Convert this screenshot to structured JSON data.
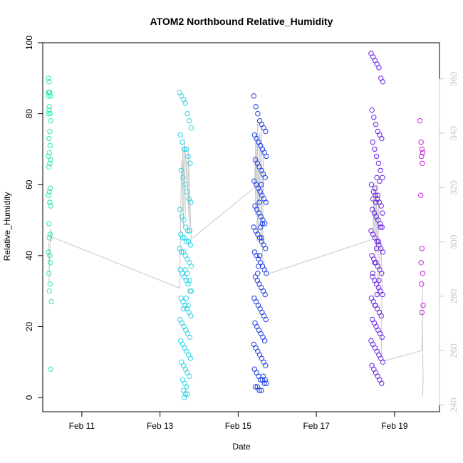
{
  "chart_data": {
    "type": "scatter",
    "title": "ATOM2 Northbound Relative_Humidity",
    "xlabel": "Date",
    "ylabel": "Relative_Humidity",
    "x_is_date": true,
    "xlim": [
      10.0,
      20.15
    ],
    "ylim": [
      -4,
      100
    ],
    "x_ticks": [
      {
        "value": 11,
        "label": "Feb 11"
      },
      {
        "value": 13,
        "label": "Feb 13"
      },
      {
        "value": 15,
        "label": "Feb 15"
      },
      {
        "value": 17,
        "label": "Feb 17"
      },
      {
        "value": 19,
        "label": "Feb 19"
      }
    ],
    "y_ticks": [
      0,
      20,
      40,
      60,
      80,
      100
    ],
    "y2_axis": {
      "label": "",
      "ylim": [
        237.5,
        373.3
      ],
      "ticks": [
        240,
        260,
        280,
        300,
        320,
        340,
        360
      ],
      "color": "#c8c8c8"
    },
    "grid": false,
    "legend": "none",
    "series": [
      {
        "color": "#2ee8b4",
        "x": [
          10.15,
          10.16,
          10.17,
          10.15,
          10.18,
          10.2,
          10.16,
          10.19,
          10.15,
          10.17,
          10.2,
          10.18,
          10.16,
          10.19,
          10.17,
          10.15,
          10.2,
          10.18,
          10.16,
          10.19,
          10.17,
          10.15,
          10.18,
          10.2,
          10.16,
          10.19,
          10.17,
          10.15,
          10.18,
          10.2,
          10.16,
          10.19,
          10.17,
          10.22,
          10.15,
          10.18,
          10.2
        ],
        "y": [
          90,
          89,
          86,
          85,
          86,
          85,
          81,
          80,
          80,
          82,
          78,
          75,
          73,
          71,
          69,
          68,
          67,
          66,
          65,
          59,
          58,
          57,
          55,
          54,
          49,
          46,
          45,
          41,
          40,
          38,
          35,
          32,
          30,
          27,
          86,
          55,
          8
        ]
      },
      {
        "color": "#2cd4e8",
        "x": [
          13.5,
          13.55,
          13.6,
          13.65,
          13.7,
          13.75,
          13.8,
          13.52,
          13.57,
          13.62,
          13.67,
          13.72,
          13.77,
          13.54,
          13.59,
          13.64,
          13.69,
          13.74,
          13.79,
          13.51,
          13.56,
          13.61,
          13.66,
          13.71,
          13.76,
          13.53,
          13.58,
          13.63,
          13.68,
          13.73,
          13.78,
          13.5,
          13.55,
          13.6,
          13.65,
          13.7,
          13.75,
          13.8,
          13.52,
          13.57,
          13.62,
          13.67,
          13.72,
          13.77,
          13.54,
          13.59,
          13.64,
          13.69,
          13.74,
          13.79,
          13.51,
          13.56,
          13.61,
          13.66,
          13.71,
          13.76,
          13.53,
          13.58,
          13.63,
          13.68,
          13.73,
          13.78,
          13.55,
          13.6,
          13.65,
          13.7,
          13.75,
          13.58,
          13.63,
          13.68,
          13.6,
          13.65,
          13.7,
          13.62,
          13.67,
          13.72,
          13.6,
          13.65,
          13.7,
          13.75,
          13.8
        ],
        "y": [
          86,
          85,
          84,
          83,
          80,
          78,
          76,
          74,
          72,
          70,
          70,
          68,
          66,
          64,
          62,
          60,
          58,
          56,
          55,
          53,
          51,
          50,
          48,
          47,
          47,
          46,
          45,
          45,
          44,
          44,
          43,
          42,
          41,
          41,
          40,
          39,
          38,
          37,
          36,
          35,
          34,
          33,
          32,
          30,
          28,
          27,
          26,
          25,
          24,
          23,
          22,
          21,
          20,
          19,
          18,
          17,
          16,
          15,
          14,
          13,
          12,
          11,
          10,
          9,
          8,
          7,
          6,
          5,
          4,
          3,
          2,
          1,
          1,
          0,
          28,
          26,
          25,
          36,
          35,
          33,
          30
        ]
      },
      {
        "color": "#1e3ee8",
        "x": [
          15.4,
          15.45,
          15.5,
          15.55,
          15.6,
          15.65,
          15.7,
          15.42,
          15.47,
          15.52,
          15.57,
          15.62,
          15.67,
          15.72,
          15.44,
          15.49,
          15.54,
          15.59,
          15.64,
          15.69,
          15.41,
          15.46,
          15.51,
          15.56,
          15.61,
          15.66,
          15.71,
          15.43,
          15.48,
          15.53,
          15.58,
          15.63,
          15.68,
          15.4,
          15.45,
          15.5,
          15.55,
          15.6,
          15.65,
          15.7,
          15.42,
          15.47,
          15.52,
          15.57,
          15.62,
          15.67,
          15.72,
          15.44,
          15.49,
          15.54,
          15.59,
          15.64,
          15.69,
          15.41,
          15.46,
          15.51,
          15.56,
          15.61,
          15.66,
          15.71,
          15.43,
          15.48,
          15.53,
          15.58,
          15.63,
          15.68,
          15.4,
          15.45,
          15.5,
          15.55,
          15.6,
          15.65,
          15.7,
          15.42,
          15.47,
          15.52,
          15.57,
          15.62,
          15.67,
          15.72,
          15.44,
          15.49,
          15.54,
          15.59,
          15.64,
          15.69,
          15.5,
          15.55,
          15.6,
          15.52,
          15.57,
          15.62,
          15.54,
          15.59
        ],
        "y": [
          85,
          82,
          80,
          78,
          77,
          76,
          75,
          74,
          73,
          72,
          71,
          70,
          69,
          68,
          67,
          66,
          65,
          64,
          63,
          62,
          61,
          60,
          59,
          58,
          57,
          56,
          55,
          54,
          53,
          52,
          51,
          50,
          49,
          48,
          47,
          46,
          45,
          44,
          43,
          42,
          41,
          40,
          39,
          38,
          37,
          36,
          35,
          34,
          33,
          32,
          31,
          30,
          29,
          28,
          27,
          26,
          25,
          24,
          23,
          22,
          21,
          20,
          19,
          18,
          17,
          16,
          15,
          14,
          13,
          12,
          11,
          10,
          9,
          8,
          7,
          6,
          5,
          5,
          4,
          4,
          3,
          3,
          2,
          2,
          6,
          5,
          35,
          40,
          45,
          37,
          48,
          49,
          55,
          60
        ]
      },
      {
        "color": "#6a22e8",
        "x": [
          18.4,
          18.45,
          18.5,
          18.55,
          18.6,
          18.65,
          18.7,
          18.42,
          18.47,
          18.52,
          18.57,
          18.62,
          18.67,
          18.44,
          18.49,
          18.54,
          18.59,
          18.64,
          18.69,
          18.41,
          18.46,
          18.51,
          18.56,
          18.61,
          18.66,
          18.43,
          18.48,
          18.53,
          18.58,
          18.63,
          18.68,
          18.4,
          18.45,
          18.5,
          18.55,
          18.6,
          18.65,
          18.7,
          18.42,
          18.47,
          18.52,
          18.57,
          18.62,
          18.67,
          18.44,
          18.49,
          18.54,
          18.59,
          18.64,
          18.69,
          18.41,
          18.46,
          18.51,
          18.56,
          18.61,
          18.66,
          18.43,
          18.48,
          18.53,
          18.58,
          18.63,
          18.68,
          18.4,
          18.45,
          18.5,
          18.55,
          18.6,
          18.65,
          18.7,
          18.42,
          18.47,
          18.52,
          18.57,
          18.62,
          18.67,
          18.44,
          18.49,
          18.54,
          18.59,
          18.64,
          18.69,
          18.45,
          18.5,
          18.55,
          18.5,
          18.55,
          18.6,
          18.52,
          18.57,
          18.62
        ],
        "y": [
          97,
          96,
          95,
          94,
          93,
          90,
          89,
          81,
          79,
          77,
          75,
          74,
          73,
          72,
          70,
          68,
          66,
          64,
          62,
          60,
          58,
          57,
          56,
          55,
          54,
          53,
          52,
          51,
          50,
          49,
          48,
          47,
          46,
          45,
          44,
          43,
          42,
          41,
          40,
          39,
          38,
          37,
          36,
          35,
          34,
          33,
          32,
          31,
          30,
          29,
          28,
          27,
          26,
          25,
          24,
          23,
          22,
          21,
          20,
          19,
          18,
          17,
          16,
          15,
          14,
          13,
          12,
          11,
          10,
          9,
          8,
          7,
          6,
          5,
          4,
          35,
          38,
          42,
          44,
          48,
          52,
          56,
          59,
          62,
          26,
          29,
          33,
          55,
          57,
          61
        ]
      },
      {
        "color": "#cc22e0",
        "x": [
          19.65,
          19.68,
          19.7,
          19.72,
          19.69,
          19.71,
          19.67,
          19.7,
          19.68,
          19.72,
          19.69,
          19.73,
          19.7
        ],
        "y": [
          78,
          72,
          70,
          69,
          68,
          66,
          57,
          42,
          38,
          35,
          32,
          26,
          24
        ]
      }
    ],
    "trace": {
      "color": "#c8c8c8",
      "segments": [
        {
          "x": [
            10.15,
            10.17,
            10.16,
            10.19,
            10.18,
            10.2,
            10.22,
            10.2
          ],
          "y": [
            300,
            290,
            285,
            300,
            295,
            305,
            300,
            302
          ]
        },
        {
          "x": [
            10.2,
            13.5
          ],
          "y": [
            302,
            283
          ]
        },
        {
          "x": [
            13.5,
            13.55,
            13.6,
            13.58,
            13.65,
            13.62,
            13.7,
            13.68,
            13.75,
            13.72,
            13.8
          ],
          "y": [
            283,
            330,
            305,
            335,
            310,
            338,
            320,
            330,
            305,
            335,
            301
          ]
        },
        {
          "x": [
            13.8,
            15.42
          ],
          "y": [
            301,
            320
          ]
        },
        {
          "x": [
            15.42,
            15.45,
            15.44,
            15.5,
            15.48,
            15.55,
            15.52,
            15.6,
            15.58,
            15.65,
            15.62,
            15.7
          ],
          "y": [
            320,
            340,
            310,
            345,
            300,
            340,
            305,
            342,
            300,
            335,
            295,
            290
          ]
        },
        {
          "x": [
            15.7,
            15.72,
            18.45
          ],
          "y": [
            290,
            288,
            301
          ]
        },
        {
          "x": [
            18.45,
            18.47,
            18.46,
            18.5,
            18.49,
            18.55,
            18.52,
            18.6,
            18.57,
            18.65
          ],
          "y": [
            301,
            320,
            305,
            318,
            300,
            322,
            295,
            316,
            280,
            300
          ]
        },
        {
          "x": [
            18.65,
            18.68,
            18.67,
            18.66,
            18.68
          ],
          "y": [
            300,
            285,
            270,
            260,
            258
          ]
        },
        {
          "x": [
            18.68,
            19.7
          ],
          "y": [
            256,
            260
          ]
        },
        {
          "x": [
            19.7,
            19.72,
            19.71,
            19.73,
            19.72
          ],
          "y": [
            260,
            285,
            270,
            250,
            243
          ]
        }
      ]
    }
  }
}
